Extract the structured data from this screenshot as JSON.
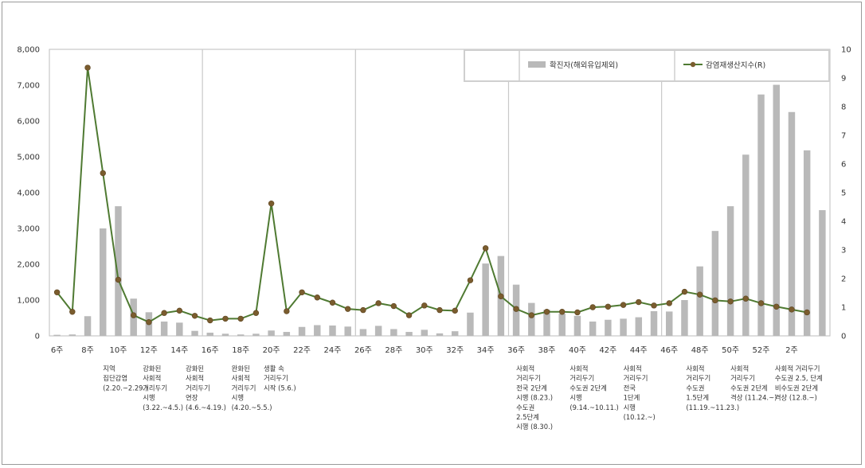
{
  "chart_data": {
    "type": "bar+line",
    "x_labels": [
      "6주",
      "8주",
      "10주",
      "12주",
      "14주",
      "16주",
      "18주",
      "20주",
      "22주",
      "24주",
      "26주",
      "28주",
      "30주",
      "32주",
      "34주",
      "36주",
      "38주",
      "40주",
      "42주",
      "44주",
      "46주",
      "48주",
      "50주",
      "52주",
      "2주"
    ],
    "weeks": [
      "6",
      "7",
      "8",
      "9",
      "10",
      "11",
      "12",
      "13",
      "14",
      "15",
      "16",
      "17",
      "18",
      "19",
      "20",
      "21",
      "22",
      "23",
      "24",
      "25",
      "26",
      "27",
      "28",
      "29",
      "30",
      "31",
      "32",
      "33",
      "34",
      "35",
      "36",
      "37",
      "38",
      "39",
      "40",
      "41",
      "42",
      "43",
      "44",
      "45",
      "46",
      "47",
      "48",
      "49",
      "50",
      "51",
      "52",
      "53",
      "1",
      "2",
      "3"
    ],
    "series": [
      {
        "name": "확진자(해외유입제외)",
        "type": "bar",
        "axis": "left",
        "color": "#b9b9b9",
        "values": [
          30,
          40,
          550,
          3000,
          3620,
          1040,
          660,
          400,
          370,
          140,
          90,
          60,
          40,
          60,
          150,
          110,
          250,
          300,
          290,
          260,
          190,
          280,
          190,
          110,
          170,
          70,
          130,
          650,
          2020,
          2230,
          1430,
          920,
          730,
          620,
          560,
          400,
          450,
          480,
          520,
          690,
          680,
          1000,
          1940,
          2930,
          3620,
          5060,
          6740,
          7010,
          6250,
          5180,
          3510
        ]
      },
      {
        "name": "감염재생산지수(R)",
        "type": "line",
        "axis": "right",
        "color": "#4f7a32",
        "values": [
          1.52,
          0.84,
          9.36,
          5.68,
          1.96,
          0.72,
          0.48,
          0.8,
          0.88,
          0.7,
          0.54,
          0.6,
          0.6,
          0.8,
          4.62,
          0.86,
          1.52,
          1.34,
          1.16,
          0.94,
          0.9,
          1.14,
          1.04,
          0.72,
          1.06,
          0.9,
          0.88,
          1.94,
          3.06,
          1.38,
          0.94,
          0.72,
          0.84,
          0.84,
          0.82,
          1.0,
          1.02,
          1.08,
          1.18,
          1.06,
          1.14,
          1.54,
          1.44,
          1.24,
          1.2,
          1.3,
          1.14,
          1.02,
          0.92,
          0.82
        ]
      }
    ],
    "y_left": {
      "min": 0,
      "max": 8000,
      "ticks": [
        "0",
        "1,000",
        "2,000",
        "3,000",
        "4,000",
        "5,000",
        "6,000",
        "7,000",
        "8,000"
      ]
    },
    "y_right": {
      "min": 0,
      "max": 10,
      "ticks": [
        "0",
        "1",
        "2",
        "3",
        "4",
        "5",
        "6",
        "7",
        "8",
        "9",
        "10"
      ]
    },
    "legend_position": "top-right",
    "grid": false,
    "annotations": [
      {
        "week_index": 3.5,
        "lines": [
          "지역",
          "집단감염",
          "(2.20.~2.29.)"
        ]
      },
      {
        "week_index": 6.1,
        "lines": [
          "강화된",
          "사회적",
          "거리두기",
          "시행",
          "(3.22.~4.5.)"
        ]
      },
      {
        "week_index": 8.9,
        "lines": [
          "강화된",
          "사회적",
          "거리두기",
          "연장",
          "(4.6.~4.19.)"
        ]
      },
      {
        "week_index": 11.9,
        "lines": [
          "완화된",
          "사회적",
          "거리두기",
          "시행",
          "(4.20.~5.5.)"
        ]
      },
      {
        "week_index": 14.0,
        "lines": [
          "생활 속",
          "거리두기",
          "시작 (5.6.)"
        ]
      },
      {
        "week_index": 30.5,
        "lines": [
          "사회적",
          "거리두기",
          "전국 2단계",
          "시행 (8.23.)",
          "수도권",
          "2.5단계",
          "시행 (8.30.)"
        ]
      },
      {
        "week_index": 34.0,
        "lines": [
          "사회적",
          "거리두기",
          "수도권 2단계",
          "시행",
          "(9.14.~10.11.)"
        ]
      },
      {
        "week_index": 37.5,
        "lines": [
          "사회적",
          "거리두기",
          "전국",
          "1단계",
          "시행",
          "(10.12.~)"
        ]
      },
      {
        "week_index": 41.6,
        "lines": [
          "사회적",
          "거리두기",
          "수도권",
          "1.5단계",
          "(11.19.~11.23.)"
        ]
      },
      {
        "week_index": 44.5,
        "lines": [
          "사회적",
          "거리두기",
          "수도권 2단계",
          "격상 (11.24.~)"
        ]
      },
      {
        "week_index": 47.4,
        "lines": [
          "사회적 거리두기",
          "수도권 2.5, 단계",
          "비수도권 2단계",
          "격상 (12.8.~)"
        ]
      }
    ]
  }
}
